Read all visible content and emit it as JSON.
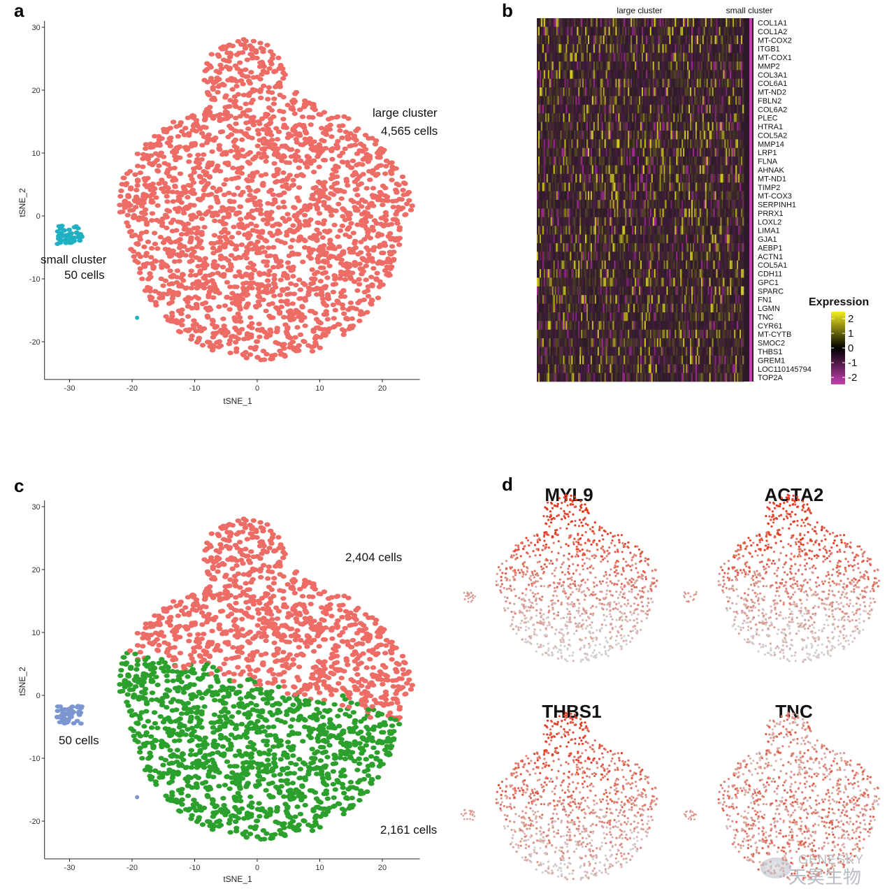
{
  "panels": {
    "a": "a",
    "b": "b",
    "c": "c",
    "d": "d"
  },
  "colors": {
    "large": "#ee6c66",
    "small": "#1fb1c1",
    "c_top": "#ee6c66",
    "c_bottom": "#2ca02c",
    "c_small": "#7b96d1",
    "hm_high": "#f5ec1e",
    "hm_mid": "#000000",
    "hm_low": "#c43fae",
    "feat_high": "#e6391f",
    "feat_low": "#cccccc",
    "large_bar": "#ee6c66",
    "small_bar": "#c43fae"
  },
  "chart_data": [
    {
      "id": "a",
      "type": "scatter",
      "xlabel": "tSNE_1",
      "ylabel": "tSNE_2",
      "xlim": [
        -34,
        26
      ],
      "ylim": [
        -26,
        31
      ],
      "xticks": [
        -30,
        -20,
        -10,
        0,
        10,
        20
      ],
      "yticks": [
        -20,
        -10,
        0,
        10,
        20,
        30
      ],
      "series": [
        {
          "name": "large cluster",
          "count": 4565,
          "color_key": "large"
        },
        {
          "name": "small cluster",
          "count": 50,
          "color_key": "small"
        }
      ],
      "annotations": [
        {
          "text": "large cluster",
          "bold": false
        },
        {
          "text": "4,565 cells",
          "bold": false
        },
        {
          "text": "small cluster",
          "bold": false
        },
        {
          "text": "50 cells",
          "bold": false
        }
      ]
    },
    {
      "id": "b",
      "type": "heatmap",
      "column_groups": [
        "large cluster",
        "small cluster"
      ],
      "genes": [
        "COL1A1",
        "COL1A2",
        "MT-COX2",
        "ITGB1",
        "MT-COX1",
        "MMP2",
        "COL3A1",
        "COL6A1",
        "MT-ND2",
        "FBLN2",
        "COL6A2",
        "PLEC",
        "HTRA1",
        "COL5A2",
        "MMP14",
        "LRP1",
        "FLNA",
        "AHNAK",
        "MT-ND1",
        "TIMP2",
        "MT-COX3",
        "SERPINH1",
        "PRRX1",
        "LOXL2",
        "LIMA1",
        "GJA1",
        "AEBP1",
        "ACTN1",
        "COL5A1",
        "CDH11",
        "GPC1",
        "SPARC",
        "FN1",
        "LGMN",
        "TNC",
        "CYR61",
        "MT-CYTB",
        "SMOC2",
        "THBS1",
        "GREM1",
        "LOC110145794",
        "TOP2A"
      ],
      "legend": {
        "title": "Expression",
        "ticks": [
          "2",
          "1",
          "0",
          "-1",
          "-2"
        ],
        "range": [
          -2.5,
          2.5
        ]
      }
    },
    {
      "id": "c",
      "type": "scatter",
      "xlabel": "tSNE_1",
      "ylabel": "tSNE_2",
      "xlim": [
        -34,
        26
      ],
      "ylim": [
        -26,
        31
      ],
      "xticks": [
        -30,
        -20,
        -10,
        0,
        10,
        20
      ],
      "yticks": [
        -20,
        -10,
        0,
        10,
        20,
        30
      ],
      "series": [
        {
          "count": 2404,
          "color_key": "c_top"
        },
        {
          "count": 2161,
          "color_key": "c_bottom"
        },
        {
          "count": 50,
          "color_key": "c_small"
        }
      ],
      "annotations": [
        {
          "text": "2,404 cells"
        },
        {
          "text": "2,161 cells"
        },
        {
          "text": "50 cells"
        }
      ]
    },
    {
      "id": "d",
      "type": "scatter",
      "feature_plots": [
        "MYL9",
        "ACTA2",
        "THBS1",
        "TNC"
      ]
    }
  ],
  "watermark": {
    "line1": "GENESKY",
    "line2": "天昊生物"
  }
}
